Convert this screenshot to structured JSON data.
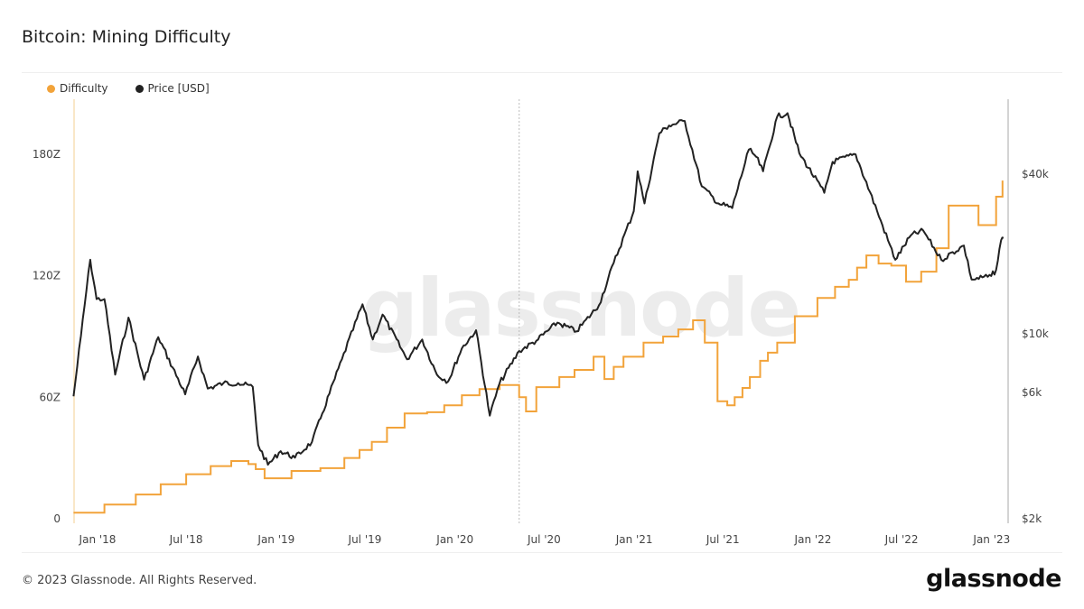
{
  "title": "Bitcoin: Mining Difficulty",
  "footer": "© 2023 Glassnode. All Rights Reserved.",
  "logo": "glassnode",
  "watermark": "glassnode",
  "chart_data": {
    "type": "line",
    "title": "Bitcoin: Mining Difficulty",
    "legend_position": "top-left",
    "grid": false,
    "x_ticks": [
      "Jan '18",
      "Jul '18",
      "Jan '19",
      "Jul '19",
      "Jan '20",
      "Jul '20",
      "Jan '21",
      "Jul '21",
      "Jan '22",
      "Jul '22",
      "Jan '23"
    ],
    "x_range": [
      "2017-11-13",
      "2023-01-25"
    ],
    "annotations": [
      {
        "type": "vertical-dashed-line",
        "date": "2020-05-11"
      }
    ],
    "y_left": {
      "ticks": [
        "0",
        "60Z",
        "120Z",
        "180Z"
      ],
      "range": [
        0,
        210
      ],
      "scale": "linear",
      "unit": "Z"
    },
    "y_right": {
      "ticks": [
        "$2k",
        "$6k",
        "$10k",
        "$40k"
      ],
      "tick_values": [
        2000,
        6000,
        10000,
        40000
      ],
      "range": [
        2000,
        80000
      ],
      "scale": "log"
    },
    "series": [
      {
        "name": "Difficulty",
        "color": "#f2a33a",
        "axis": "left",
        "step": true,
        "points": [
          [
            "2017-11-13",
            3
          ],
          [
            "2018-01-15",
            7
          ],
          [
            "2018-03-20",
            12
          ],
          [
            "2018-05-10",
            17
          ],
          [
            "2018-07-01",
            22
          ],
          [
            "2018-08-20",
            26
          ],
          [
            "2018-10-01",
            28.5
          ],
          [
            "2018-11-05",
            27
          ],
          [
            "2018-11-20",
            24.5
          ],
          [
            "2018-12-08",
            20
          ],
          [
            "2019-02-01",
            23.6
          ],
          [
            "2019-04-01",
            25
          ],
          [
            "2019-05-20",
            30
          ],
          [
            "2019-06-20",
            34
          ],
          [
            "2019-07-15",
            38
          ],
          [
            "2019-08-15",
            45
          ],
          [
            "2019-09-20",
            52
          ],
          [
            "2019-11-05",
            52.6
          ],
          [
            "2019-12-10",
            56
          ],
          [
            "2020-01-15",
            61
          ],
          [
            "2020-02-20",
            64
          ],
          [
            "2020-04-01",
            66
          ],
          [
            "2020-05-11",
            60
          ],
          [
            "2020-05-25",
            53
          ],
          [
            "2020-06-15",
            65
          ],
          [
            "2020-08-01",
            70
          ],
          [
            "2020-09-01",
            73.5
          ],
          [
            "2020-10-10",
            80
          ],
          [
            "2020-11-01",
            69
          ],
          [
            "2020-11-20",
            75
          ],
          [
            "2020-12-10",
            80
          ],
          [
            "2021-01-20",
            87
          ],
          [
            "2021-03-01",
            90
          ],
          [
            "2021-04-01",
            93.5
          ],
          [
            "2021-05-01",
            98
          ],
          [
            "2021-05-15",
            98
          ],
          [
            "2021-05-25",
            87
          ],
          [
            "2021-06-20",
            58
          ],
          [
            "2021-07-10",
            56
          ],
          [
            "2021-07-25",
            60
          ],
          [
            "2021-08-10",
            64.6
          ],
          [
            "2021-08-25",
            70
          ],
          [
            "2021-09-15",
            78
          ],
          [
            "2021-10-01",
            82
          ],
          [
            "2021-10-20",
            87
          ],
          [
            "2021-11-25",
            100
          ],
          [
            "2022-01-10",
            109
          ],
          [
            "2022-02-15",
            114.5
          ],
          [
            "2022-03-15",
            118
          ],
          [
            "2022-04-01",
            124
          ],
          [
            "2022-04-20",
            130
          ],
          [
            "2022-05-15",
            126
          ],
          [
            "2022-06-10",
            125
          ],
          [
            "2022-07-10",
            117
          ],
          [
            "2022-08-10",
            122
          ],
          [
            "2022-09-10",
            133.6
          ],
          [
            "2022-10-05",
            154.6
          ],
          [
            "2022-11-25",
            154.6
          ],
          [
            "2022-12-05",
            145
          ],
          [
            "2022-12-25",
            145
          ],
          [
            "2023-01-10",
            159
          ],
          [
            "2023-01-23",
            167
          ]
        ]
      },
      {
        "name": "Price [USD]",
        "color": "#222222",
        "axis": "right",
        "points": [
          [
            "2017-11-13",
            5800
          ],
          [
            "2017-11-28",
            9800
          ],
          [
            "2017-12-17",
            19000
          ],
          [
            "2017-12-30",
            13500
          ],
          [
            "2018-01-15",
            13500
          ],
          [
            "2018-02-06",
            7000
          ],
          [
            "2018-03-05",
            11500
          ],
          [
            "2018-04-06",
            6700
          ],
          [
            "2018-05-05",
            9700
          ],
          [
            "2018-06-29",
            5900
          ],
          [
            "2018-07-25",
            8200
          ],
          [
            "2018-08-14",
            6200
          ],
          [
            "2018-09-15",
            6500
          ],
          [
            "2018-10-15",
            6500
          ],
          [
            "2018-11-14",
            6300
          ],
          [
            "2018-11-25",
            3800
          ],
          [
            "2018-12-15",
            3200
          ],
          [
            "2019-01-10",
            3600
          ],
          [
            "2019-02-08",
            3400
          ],
          [
            "2019-03-15",
            3900
          ],
          [
            "2019-04-05",
            5000
          ],
          [
            "2019-05-15",
            8000
          ],
          [
            "2019-06-26",
            12900
          ],
          [
            "2019-07-17",
            9500
          ],
          [
            "2019-08-06",
            11800
          ],
          [
            "2019-09-25",
            8000
          ],
          [
            "2019-10-26",
            9500
          ],
          [
            "2019-11-25",
            7000
          ],
          [
            "2019-12-18",
            6600
          ],
          [
            "2020-01-15",
            8800
          ],
          [
            "2020-02-13",
            10300
          ],
          [
            "2020-03-12",
            4900
          ],
          [
            "2020-04-01",
            6500
          ],
          [
            "2020-05-11",
            8600
          ],
          [
            "2020-06-15",
            9400
          ],
          [
            "2020-07-28",
            11000
          ],
          [
            "2020-09-05",
            10200
          ],
          [
            "2020-10-21",
            12800
          ],
          [
            "2020-11-20",
            18500
          ],
          [
            "2020-12-31",
            29000
          ],
          [
            "2021-01-08",
            41000
          ],
          [
            "2021-01-22",
            31000
          ],
          [
            "2021-02-21",
            57000
          ],
          [
            "2021-03-13",
            61000
          ],
          [
            "2021-04-14",
            63500
          ],
          [
            "2021-05-19",
            36000
          ],
          [
            "2021-06-22",
            31000
          ],
          [
            "2021-07-20",
            29800
          ],
          [
            "2021-08-23",
            49500
          ],
          [
            "2021-09-07",
            46500
          ],
          [
            "2021-09-21",
            41000
          ],
          [
            "2021-10-20",
            66000
          ],
          [
            "2021-11-10",
            68000
          ],
          [
            "2021-12-04",
            48000
          ],
          [
            "2022-01-24",
            34000
          ],
          [
            "2022-02-10",
            44500
          ],
          [
            "2022-03-29",
            47500
          ],
          [
            "2022-05-12",
            29000
          ],
          [
            "2022-06-18",
            19000
          ],
          [
            "2022-07-20",
            23500
          ],
          [
            "2022-08-14",
            24500
          ],
          [
            "2022-09-20",
            19000
          ],
          [
            "2022-11-05",
            21500
          ],
          [
            "2022-11-21",
            16000
          ],
          [
            "2022-12-31",
            16500
          ],
          [
            "2023-01-10",
            17400
          ],
          [
            "2023-01-20",
            22500
          ],
          [
            "2023-01-25",
            23000
          ]
        ]
      }
    ]
  }
}
